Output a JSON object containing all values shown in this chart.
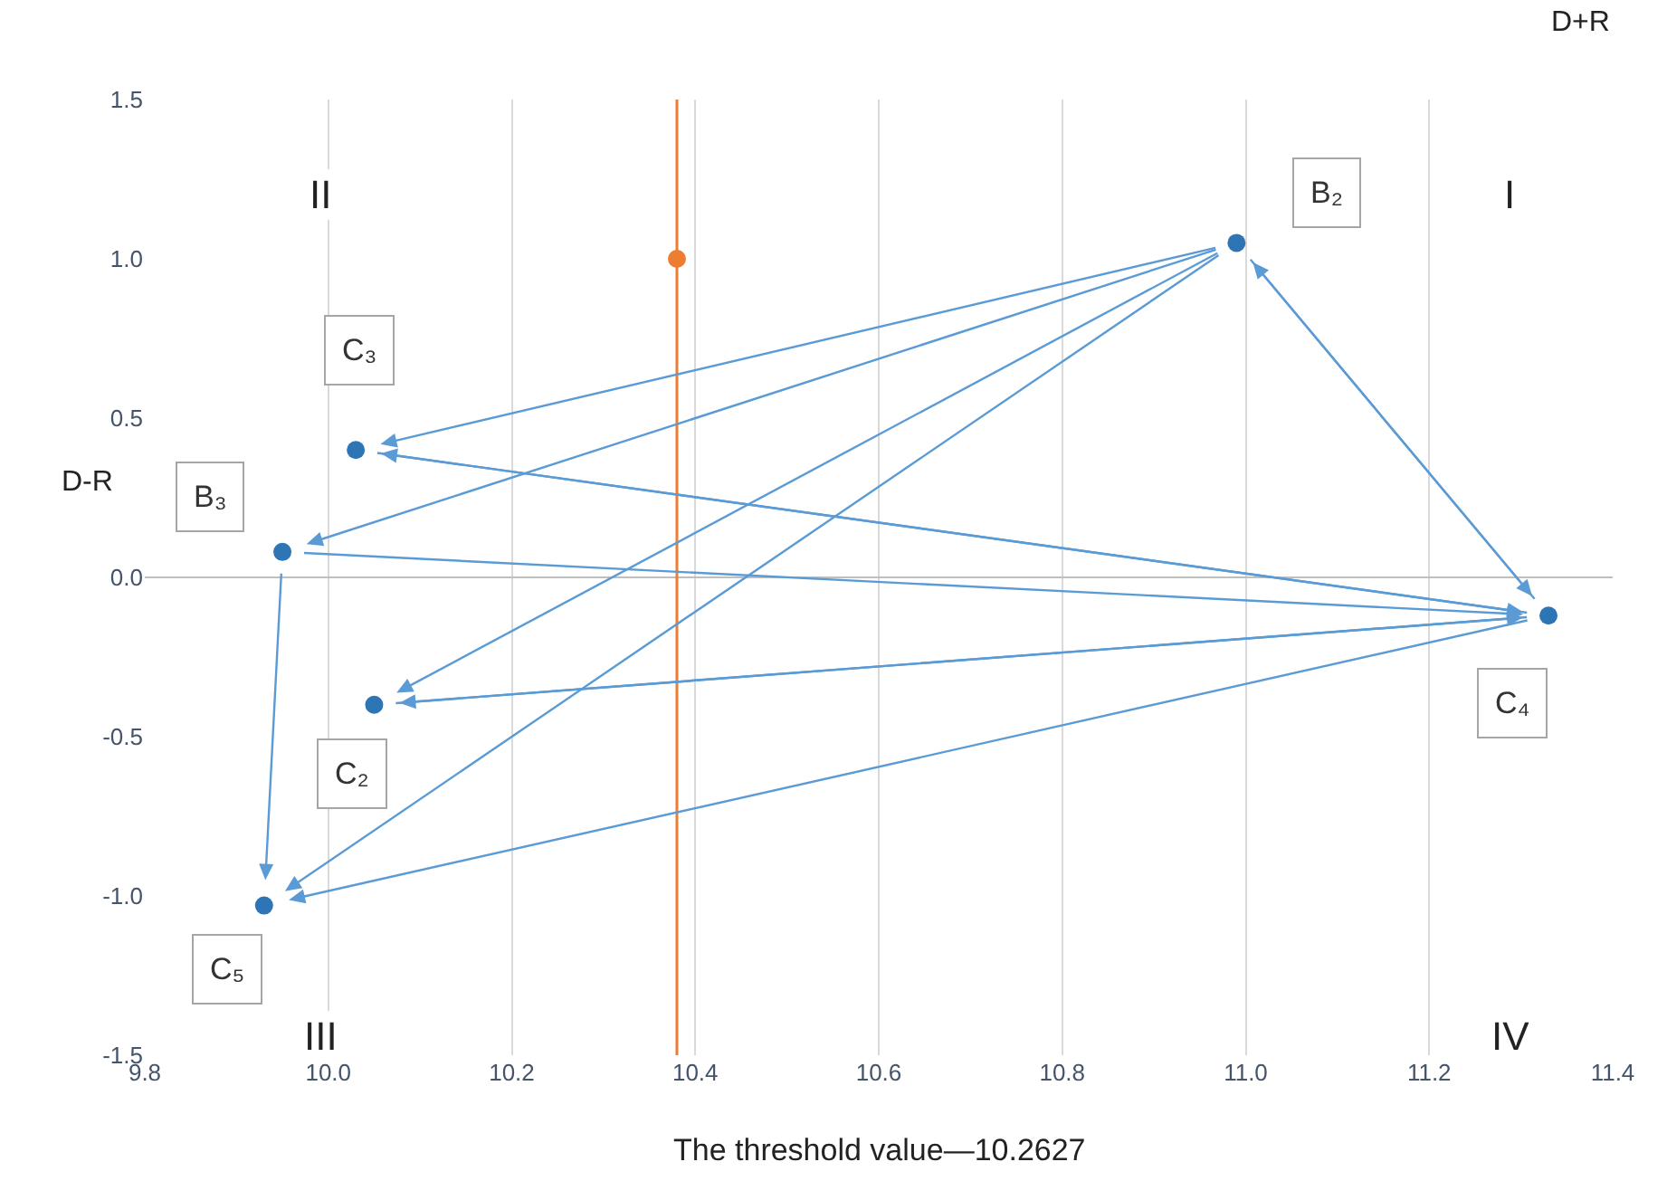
{
  "chart_data": {
    "type": "scatter",
    "xlabel": "D+R",
    "ylabel": "D-R",
    "xlim": [
      9.8,
      11.4
    ],
    "xticks": [
      9.8,
      {
        "value": 10,
        "label": "10.0"
      },
      10.2,
      10.4,
      10.6,
      10.8,
      {
        "value": 11,
        "label": "11.0"
      },
      11.2,
      11.4
    ],
    "ylim": [
      -1.5,
      1.5
    ],
    "yticks": [
      -1.5,
      {
        "value": -1,
        "label": "-1.0"
      },
      -0.5,
      {
        "value": 0,
        "label": "0.0"
      },
      0.5,
      {
        "value": 1,
        "label": "1.0"
      },
      1.5
    ],
    "grid": "x",
    "marker": "circle",
    "ref_lines": [
      {
        "axis": "x",
        "value": 10.38,
        "color": "#ed7d31"
      }
    ],
    "series": [
      {
        "color": "#2e75b6",
        "x": [
          10.99,
          10.03,
          9.95,
          10.05,
          9.93,
          11.33
        ],
        "values": [
          1.05,
          0.4,
          0.08,
          -0.4,
          -1.03,
          -0.12
        ]
      },
      {
        "color": "#ed7d31",
        "x": [
          10.38
        ],
        "values": [
          1.0
        ]
      }
    ],
    "annotations": [
      {
        "text": "B₂",
        "x": 10.99,
        "y": 1.05
      },
      {
        "text": "C₃",
        "x": 10.03,
        "y": 0.4
      },
      {
        "text": "B₃",
        "x": 9.95,
        "y": 0.08
      },
      {
        "text": "C₂",
        "x": 10.05,
        "y": -0.4
      },
      {
        "text": "C₅",
        "x": 9.93,
        "y": -1.03
      },
      {
        "text": "C₄",
        "x": 11.33,
        "y": -0.12
      },
      "II",
      "I",
      "III",
      "IV",
      "The threshold value—10.2627"
    ]
  }
}
